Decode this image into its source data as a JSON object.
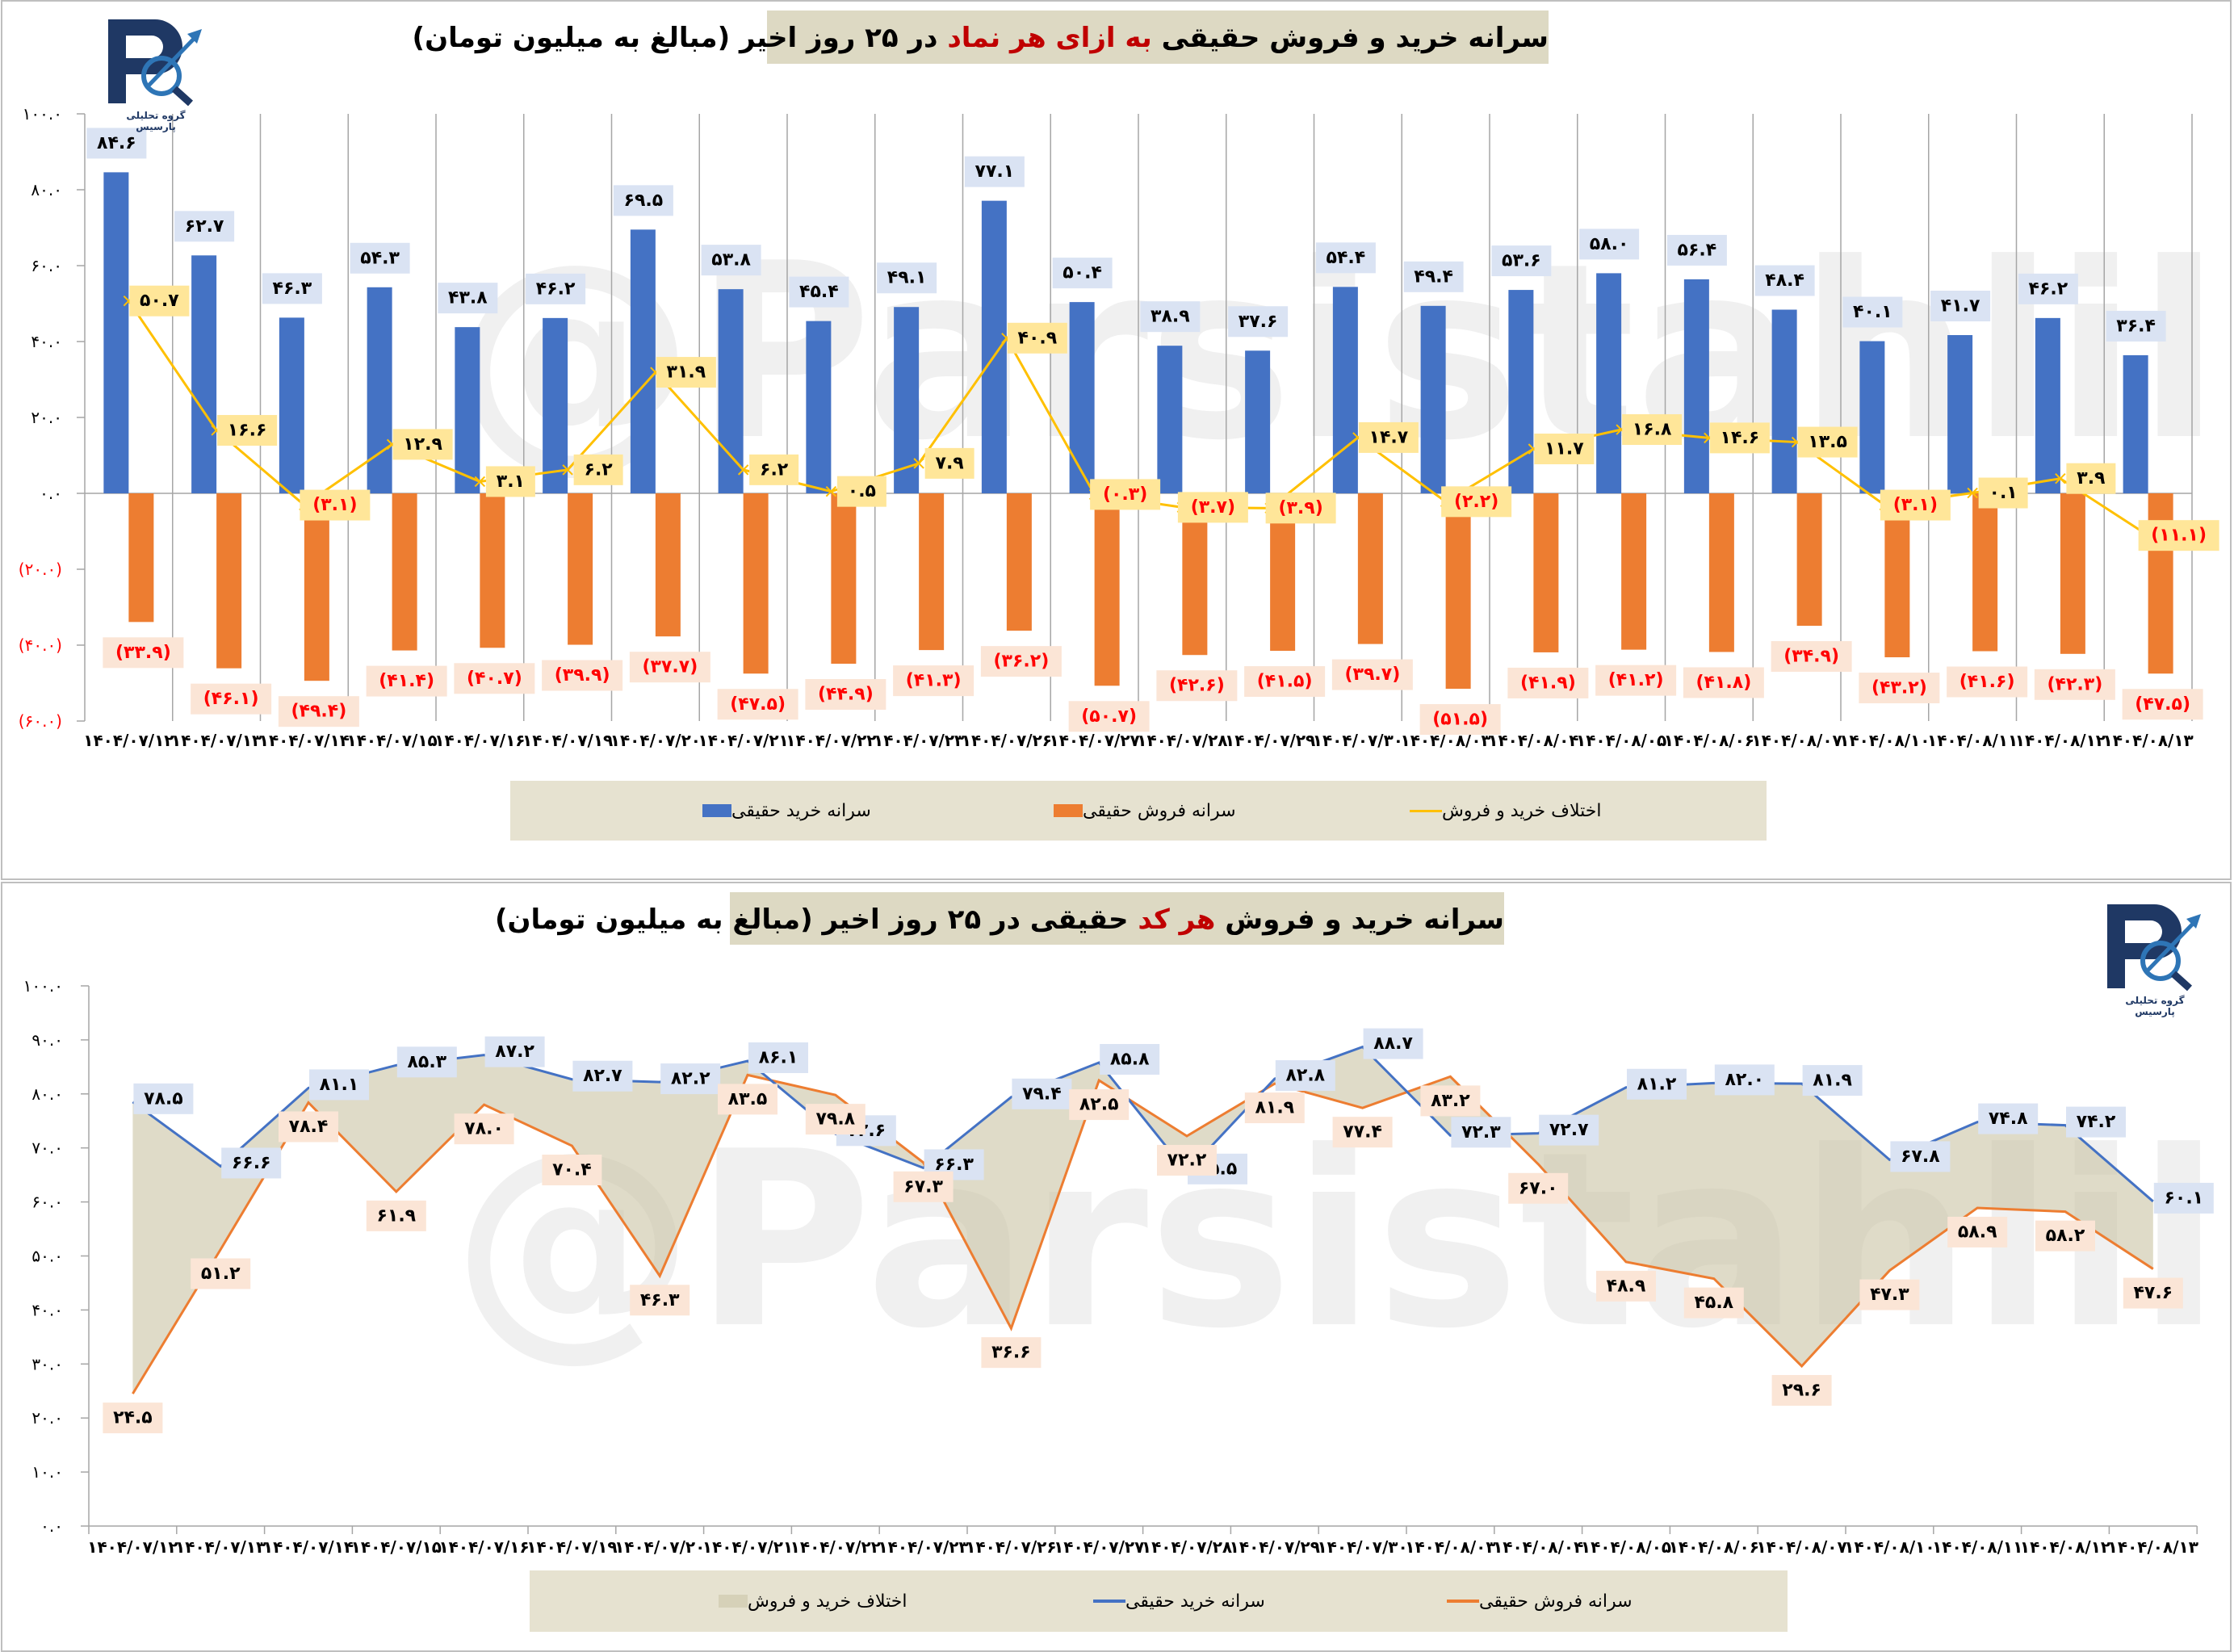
{
  "colors": {
    "buy": "#4472c4",
    "sell": "#ed7d31",
    "diff": "#ffc000",
    "area": "#ddd9c3",
    "neg_text": "#ff0000",
    "buy_label_bg": "#dae3f3",
    "sell_label_bg": "#fbe5d6",
    "diff_label_bg": "#ffe699"
  },
  "logo_text": "گروه تحلیلی پارسیس",
  "watermark": "@Parsistahlil",
  "chart_data": [
    {
      "type": "bar",
      "title": {
        "pre": "سرانه خرید و فروش حقیقی ",
        "highlight": "به ازای هر نماد",
        "post": " در ۲۵ روز اخیر (مبالغ به میلیون تومان)"
      },
      "categories": [
        "۱۴۰۴/۰۷/۱۲",
        "۱۴۰۴/۰۷/۱۳",
        "۱۴۰۴/۰۷/۱۴",
        "۱۴۰۴/۰۷/۱۵",
        "۱۴۰۴/۰۷/۱۶",
        "۱۴۰۴/۰۷/۱۹",
        "۱۴۰۴/۰۷/۲۰",
        "۱۴۰۴/۰۷/۲۱",
        "۱۴۰۴/۰۷/۲۲",
        "۱۴۰۴/۰۷/۲۳",
        "۱۴۰۴/۰۷/۲۶",
        "۱۴۰۴/۰۷/۲۷",
        "۱۴۰۴/۰۷/۲۸",
        "۱۴۰۴/۰۷/۲۹",
        "۱۴۰۴/۰۷/۳۰",
        "۱۴۰۴/۰۸/۰۳",
        "۱۴۰۴/۰۸/۰۴",
        "۱۴۰۴/۰۸/۰۵",
        "۱۴۰۴/۰۸/۰۶",
        "۱۴۰۴/۰۸/۰۷",
        "۱۴۰۴/۰۸/۱۰",
        "۱۴۰۴/۰۸/۱۱",
        "۱۴۰۴/۰۸/۱۲",
        "۱۴۰۴/۰۸/۱۳"
      ],
      "series": [
        {
          "name": "سرانه خرید حقیقی",
          "kind": "bar",
          "values": [
            84.6,
            62.7,
            46.3,
            54.3,
            43.8,
            46.2,
            69.5,
            53.8,
            45.4,
            49.1,
            77.1,
            50.4,
            38.9,
            37.6,
            54.4,
            49.4,
            53.6,
            58.0,
            56.4,
            48.4,
            40.1,
            41.7,
            46.2,
            36.4
          ]
        },
        {
          "name": "سرانه فروش حقیقی",
          "kind": "bar",
          "values": [
            -33.9,
            -46.1,
            -49.4,
            -41.4,
            -40.7,
            -39.9,
            -37.7,
            -47.5,
            -44.9,
            -41.3,
            -36.2,
            -50.7,
            -42.6,
            -41.5,
            -39.7,
            -51.5,
            -41.9,
            -41.2,
            -41.8,
            -34.9,
            -43.2,
            -41.6,
            -42.3,
            -47.5
          ]
        },
        {
          "name": "اختلاف خرید و فروش",
          "kind": "line",
          "values": [
            50.7,
            16.6,
            -3.1,
            12.9,
            3.1,
            6.2,
            31.9,
            6.2,
            0.5,
            7.9,
            40.9,
            -0.3,
            -3.7,
            -3.9,
            14.7,
            -2.2,
            11.7,
            16.8,
            14.6,
            13.5,
            -3.1,
            0.1,
            3.9,
            -11.1
          ]
        }
      ],
      "ylim": [
        -60,
        100
      ],
      "ytick_step": 20,
      "grid": "vertical",
      "legend": "bottom"
    },
    {
      "type": "line",
      "title": {
        "pre": "سرانه خرید و فروش ",
        "highlight": "هر کد",
        "post": " حقیقی در ۲۵ روز اخیر (مبالغ به میلیون تومان)"
      },
      "categories": [
        "۱۴۰۴/۰۷/۱۲",
        "۱۴۰۴/۰۷/۱۳",
        "۱۴۰۴/۰۷/۱۴",
        "۱۴۰۴/۰۷/۱۵",
        "۱۴۰۴/۰۷/۱۶",
        "۱۴۰۴/۰۷/۱۹",
        "۱۴۰۴/۰۷/۲۰",
        "۱۴۰۴/۰۷/۲۱",
        "۱۴۰۴/۰۷/۲۲",
        "۱۴۰۴/۰۷/۲۳",
        "۱۴۰۴/۰۷/۲۶",
        "۱۴۰۴/۰۷/۲۷",
        "۱۴۰۴/۰۷/۲۸",
        "۱۴۰۴/۰۷/۲۹",
        "۱۴۰۴/۰۷/۳۰",
        "۱۴۰۴/۰۸/۰۳",
        "۱۴۰۴/۰۸/۰۴",
        "۱۴۰۴/۰۸/۰۵",
        "۱۴۰۴/۰۸/۰۶",
        "۱۴۰۴/۰۸/۰۷",
        "۱۴۰۴/۰۸/۱۰",
        "۱۴۰۴/۰۸/۱۱",
        "۱۴۰۴/۰۸/۱۲",
        "۱۴۰۴/۰۸/۱۳"
      ],
      "series": [
        {
          "name": "سرانه خرید حقیقی",
          "kind": "line",
          "values": [
            78.5,
            66.6,
            81.1,
            85.3,
            87.2,
            82.7,
            82.2,
            86.1,
            72.6,
            66.3,
            79.4,
            85.8,
            65.5,
            82.8,
            88.7,
            72.3,
            72.7,
            81.2,
            82.0,
            81.9,
            67.8,
            74.8,
            74.2,
            60.1
          ]
        },
        {
          "name": "سرانه فروش حقیقی",
          "kind": "line",
          "values": [
            24.5,
            51.2,
            78.4,
            61.9,
            78.0,
            70.4,
            46.3,
            83.5,
            79.8,
            67.3,
            36.6,
            82.5,
            72.2,
            81.9,
            77.4,
            83.2,
            67.0,
            48.9,
            45.8,
            29.6,
            47.3,
            58.9,
            58.2,
            47.6
          ]
        }
      ],
      "area_name": "اختلاف خرید و فروش",
      "ylim": [
        0,
        100
      ],
      "ytick_step": 10,
      "grid": "none",
      "legend": "bottom"
    }
  ]
}
